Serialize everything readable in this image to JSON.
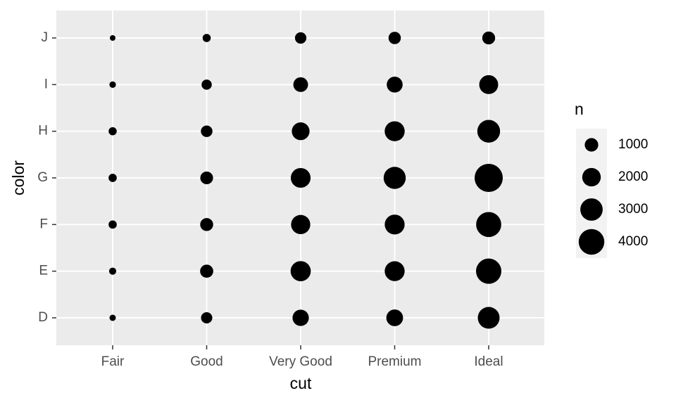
{
  "chart_data": {
    "type": "count",
    "x_label": "cut",
    "y_label": "color",
    "x_categories": [
      "Fair",
      "Good",
      "Very Good",
      "Premium",
      "Ideal"
    ],
    "y_categories": [
      "D",
      "E",
      "F",
      "G",
      "H",
      "I",
      "J"
    ],
    "values": [
      [
        163,
        224,
        312,
        314,
        303,
        175,
        119
      ],
      [
        662,
        933,
        909,
        871,
        702,
        522,
        307
      ],
      [
        1513,
        2400,
        2164,
        2299,
        1824,
        1204,
        678
      ],
      [
        1603,
        2337,
        2331,
        2924,
        2360,
        1428,
        808
      ],
      [
        2834,
        3903,
        3826,
        4884,
        3115,
        2093,
        896
      ]
    ],
    "color": "#000000",
    "grid": true,
    "size_legend": {
      "title": "n",
      "breaks": [
        1000,
        2000,
        3000,
        4000
      ]
    }
  }
}
